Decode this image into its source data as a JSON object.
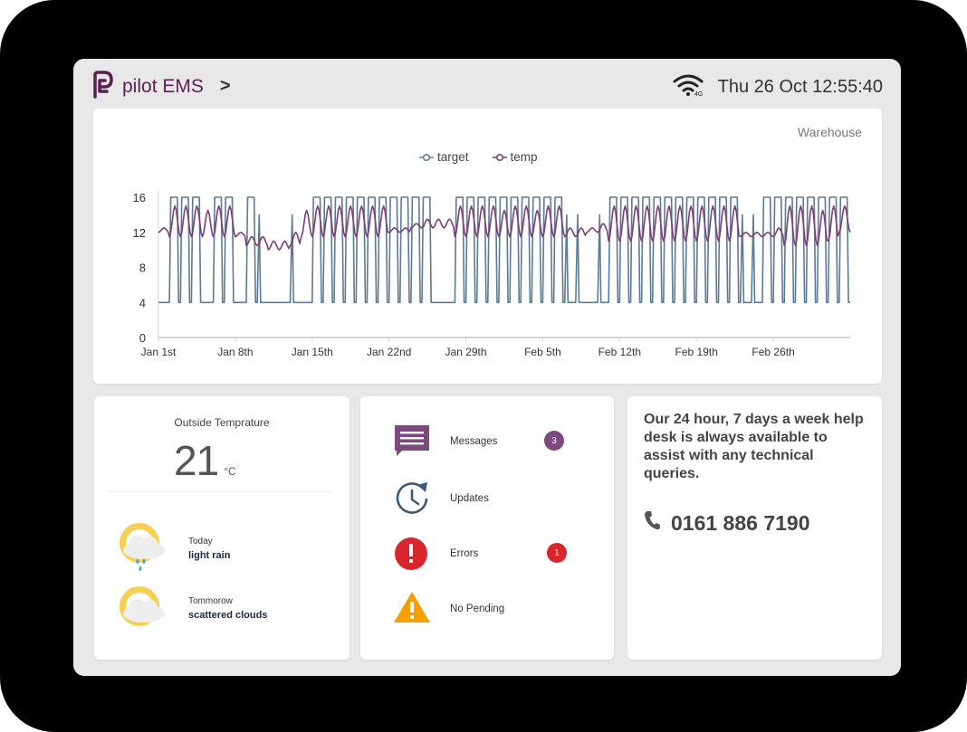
{
  "app": {
    "name": "pilot EMS",
    "chevron": ">"
  },
  "status": {
    "network": "4G",
    "datetime": "Thu 26 Oct 12:55:40"
  },
  "chart_panel": {
    "site": "Warehouse"
  },
  "chart_data": {
    "type": "line",
    "series": [
      {
        "name": "target",
        "color": "#5e7a93"
      },
      {
        "name": "temp",
        "color": "#7b3f78"
      }
    ],
    "x_ticks": [
      "Jan 1st",
      "Jan 8th",
      "Jan 15th",
      "Jan 22nd",
      "Jan 29th",
      "Feb 5th",
      "Feb 12th",
      "Feb 19th",
      "Feb 26th"
    ],
    "y_ticks": [
      "0",
      "4",
      "8",
      "12",
      "16"
    ],
    "ylim": [
      0,
      16
    ],
    "xlim_days": [
      0,
      63
    ],
    "target_low": 4,
    "target_high": 16,
    "target_on_days": [
      1,
      2,
      3,
      5,
      6,
      8,
      14,
      15,
      16,
      17,
      18,
      19,
      20,
      21,
      22,
      23,
      24,
      27,
      28,
      29,
      30,
      31,
      32,
      33,
      34,
      35,
      36,
      41,
      42,
      43,
      44,
      45,
      46,
      47,
      48,
      49,
      50,
      51,
      52,
      55,
      56,
      57,
      58,
      59,
      60,
      61,
      62
    ],
    "target_brief_on_days": [
      9,
      12,
      37,
      38,
      40,
      53,
      54
    ],
    "temp_daily_peaks": [
      12.5,
      15.0,
      15.0,
      15.0,
      14.5,
      15.0,
      15.0,
      12.0,
      11.5,
      11.5,
      11.0,
      11.0,
      12.0,
      14.5,
      15.0,
      15.0,
      15.0,
      15.0,
      15.0,
      15.0,
      15.0,
      12.5,
      12.5,
      13.0,
      13.5,
      13.5,
      13.5,
      15.0,
      15.0,
      15.0,
      15.0,
      14.5,
      15.0,
      15.0,
      14.5,
      15.0,
      15.0,
      12.5,
      12.5,
      12.5,
      13.0,
      15.0,
      15.0,
      15.0,
      15.0,
      15.0,
      15.0,
      15.0,
      15.0,
      15.0,
      15.0,
      15.0,
      15.0,
      12.0,
      12.0,
      12.0,
      12.5,
      15.0,
      15.0,
      15.0,
      14.5,
      15.0,
      15.0
    ],
    "temp_daily_lows": [
      12.0,
      11.5,
      11.5,
      11.5,
      11.5,
      11.5,
      11.5,
      11.5,
      10.5,
      10.5,
      10.0,
      10.0,
      10.5,
      11.5,
      11.5,
      11.5,
      11.5,
      11.5,
      11.5,
      11.5,
      11.5,
      12.0,
      12.0,
      12.5,
      12.5,
      12.5,
      12.5,
      11.5,
      11.5,
      11.5,
      11.5,
      11.5,
      11.5,
      11.5,
      11.5,
      11.5,
      11.5,
      11.5,
      11.5,
      12.0,
      12.0,
      11.0,
      11.0,
      11.0,
      11.0,
      11.0,
      11.0,
      11.0,
      11.0,
      11.0,
      11.0,
      11.0,
      11.0,
      11.5,
      11.5,
      11.5,
      11.5,
      10.5,
      10.5,
      10.5,
      10.5,
      11.0,
      12.0
    ]
  },
  "weather": {
    "title": "Outside Temprature",
    "temperature": "21",
    "unit": "°C",
    "forecast": [
      {
        "day": "Today",
        "condition": "light rain"
      },
      {
        "day": "Tommorow",
        "condition": "scattered clouds"
      }
    ]
  },
  "alerts": [
    {
      "label": "Messages",
      "count": "3",
      "badge_color": "#7b4a7e"
    },
    {
      "label": "Updates"
    },
    {
      "label": "Errors",
      "count": "1",
      "badge_color": "#d9262c"
    },
    {
      "label": "No Pending"
    }
  ],
  "help": {
    "text": "Our 24 hour, 7 days a week help desk is always available to assist with any technical queries.",
    "phone": "0161 886 7190"
  }
}
